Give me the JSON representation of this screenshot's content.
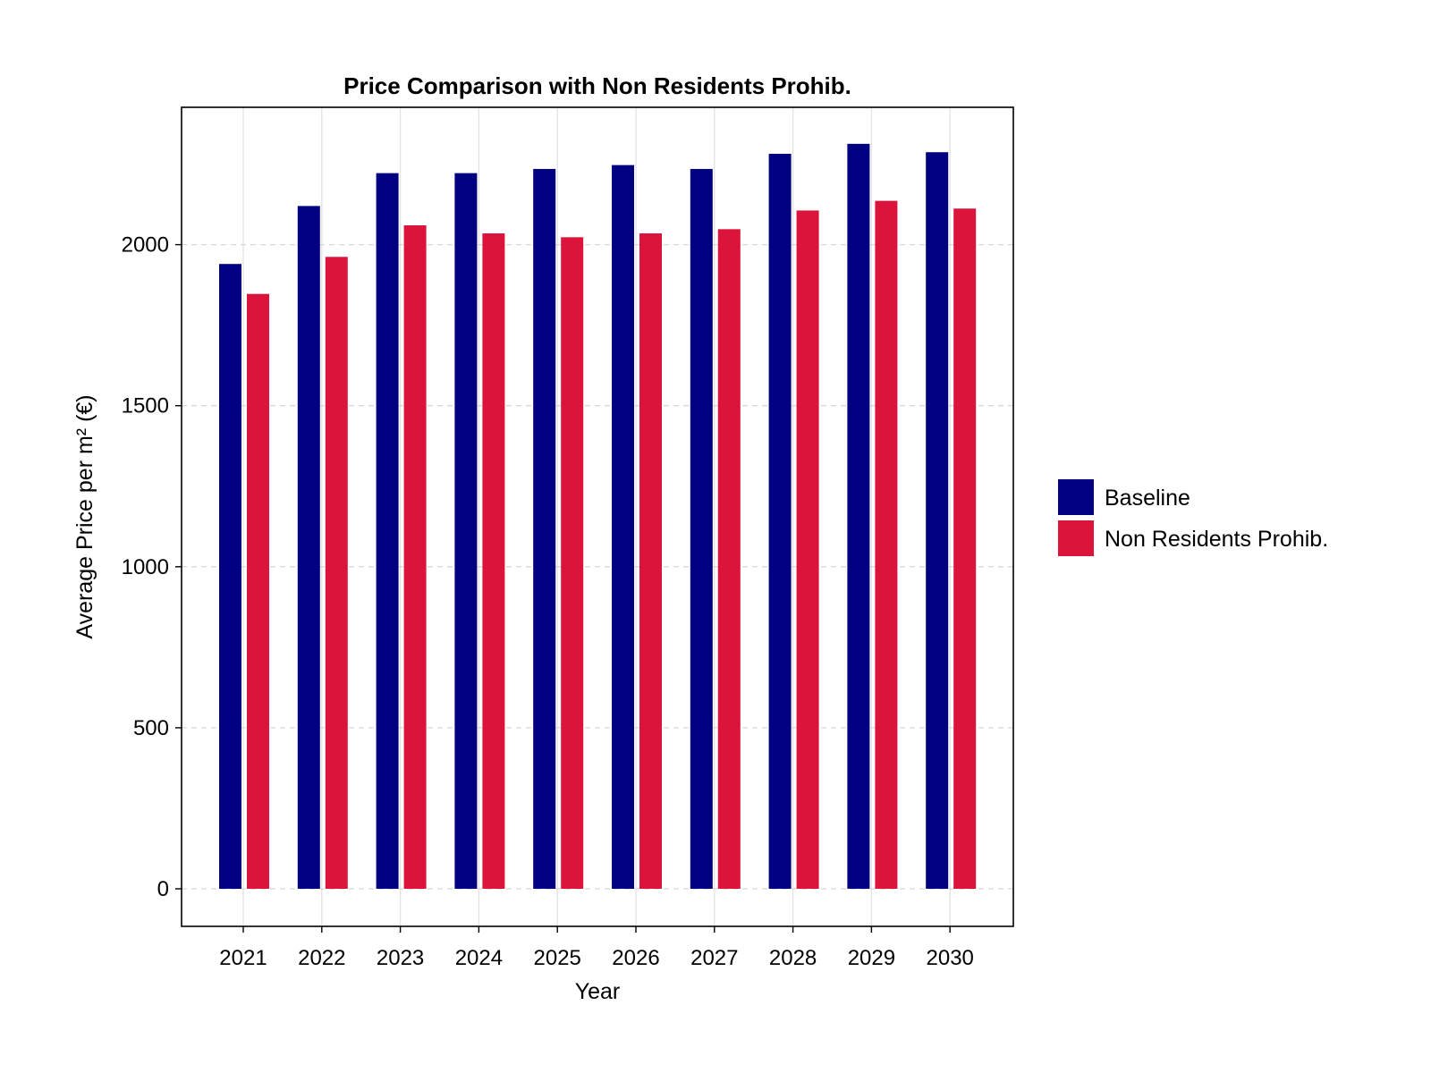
{
  "chart_data": {
    "type": "bar",
    "title": "Price Comparison with Non Residents Prohib.",
    "xlabel": "Year",
    "ylabel": "Average Price per m² (€)",
    "categories": [
      "2021",
      "2022",
      "2023",
      "2024",
      "2025",
      "2026",
      "2027",
      "2028",
      "2029",
      "2030"
    ],
    "series": [
      {
        "name": "Baseline",
        "color": "#000080",
        "values": [
          1940,
          2120,
          2222,
          2222,
          2235,
          2247,
          2235,
          2282,
          2313,
          2287
        ]
      },
      {
        "name": "Non Residents Prohib.",
        "color": "#DC143C",
        "values": [
          1847,
          1962,
          2060,
          2035,
          2023,
          2035,
          2048,
          2106,
          2136,
          2112
        ]
      }
    ],
    "ylim": [
      -115,
      2427
    ],
    "yticks": [
      0,
      500,
      1000,
      1500,
      2000
    ],
    "grid": true,
    "legend_position": "right"
  }
}
